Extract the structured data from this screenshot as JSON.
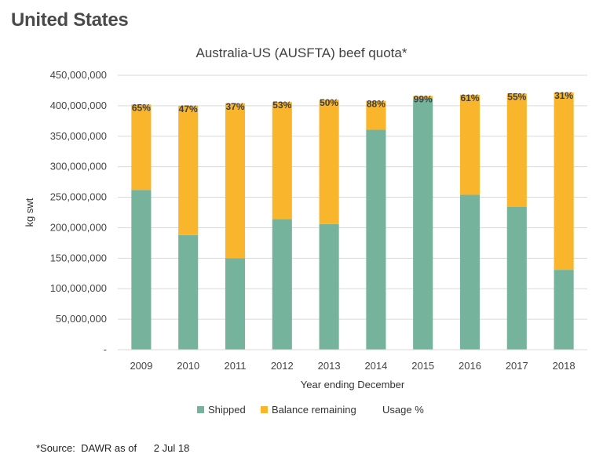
{
  "page": {
    "heading": "United States"
  },
  "source_note": "*Source:  DAWR as of      2 Jul 18",
  "chart_data": {
    "type": "bar",
    "stacked": true,
    "title": "Australia-US (AUSFTA) beef quota*",
    "xlabel": "Year ending December",
    "ylabel": "kg swt",
    "ylim": [
      0,
      450000000
    ],
    "ytick_labels": [
      "-",
      "50,000,000",
      "100,000,000",
      "150,000,000",
      "200,000,000",
      "250,000,000",
      "300,000,000",
      "350,000,000",
      "400,000,000",
      "450,000,000"
    ],
    "ytick_values": [
      0,
      50000000,
      100000000,
      150000000,
      200000000,
      250000000,
      300000000,
      350000000,
      400000000,
      450000000
    ],
    "categories": [
      "2009",
      "2010",
      "2011",
      "2012",
      "2013",
      "2014",
      "2015",
      "2016",
      "2017",
      "2018"
    ],
    "series": [
      {
        "name": "Shipped",
        "color": "#76b39d",
        "values": [
          262000000,
          188000000,
          150000000,
          214000000,
          206000000,
          361000000,
          412000000,
          254000000,
          234000000,
          131000000
        ]
      },
      {
        "name": "Balance remaining",
        "color": "#f9b52b",
        "values": [
          140000000,
          212000000,
          254000000,
          192000000,
          204000000,
          47000000,
          4000000,
          164000000,
          186000000,
          291000000
        ]
      }
    ],
    "usage_series_name": "Usage %",
    "usage_labels": [
      "65%",
      "47%",
      "37%",
      "53%",
      "50%",
      "88%",
      "99%",
      "61%",
      "55%",
      "31%"
    ],
    "grid": true,
    "legend_position": "bottom"
  }
}
